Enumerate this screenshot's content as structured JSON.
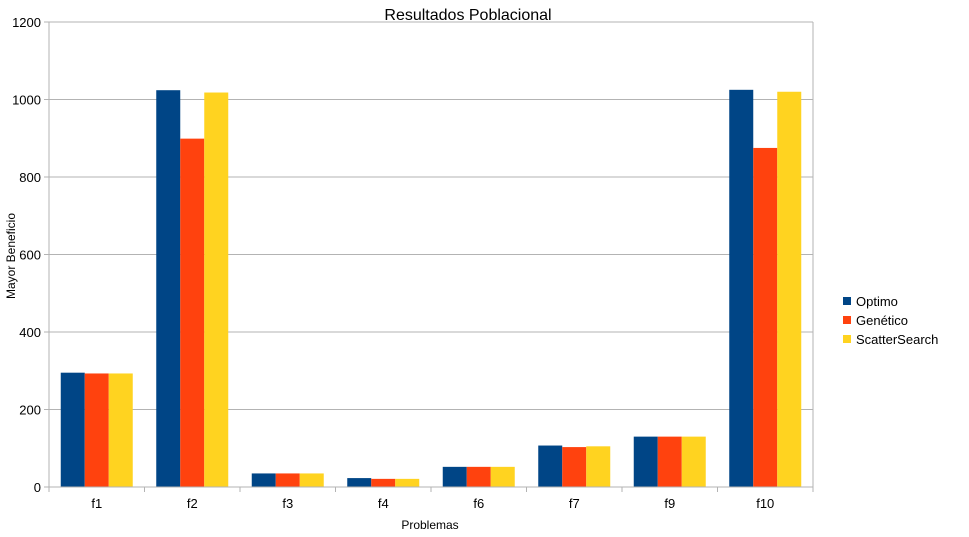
{
  "chart_data": {
    "type": "bar",
    "title": "Resultados Poblacional",
    "xlabel": "Problemas",
    "ylabel": "Mayor Beneficio",
    "categories": [
      "f1",
      "f2",
      "f3",
      "f4",
      "f6",
      "f7",
      "f9",
      "f10"
    ],
    "ylim": [
      0,
      1200
    ],
    "yticks": [
      0,
      200,
      400,
      600,
      800,
      1000,
      1200
    ],
    "grid": true,
    "legend_position": "right",
    "series": [
      {
        "name": "Optimo",
        "color": "#004586",
        "values": [
          295,
          1024,
          35,
          23,
          52,
          107,
          130,
          1025
        ]
      },
      {
        "name": "Genético",
        "color": "#ff420e",
        "values": [
          293,
          899,
          35,
          21,
          52,
          103,
          130,
          875
        ]
      },
      {
        "name": "ScatterSearch",
        "color": "#ffd320",
        "values": [
          293,
          1018,
          35,
          21,
          52,
          105,
          130,
          1020
        ]
      }
    ]
  }
}
